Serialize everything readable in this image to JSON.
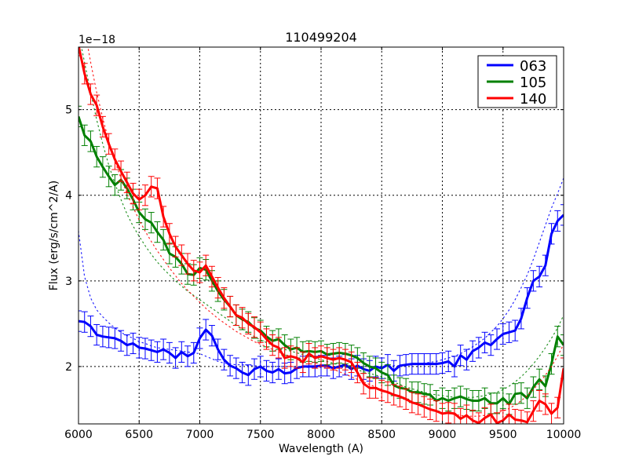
{
  "chart_data": {
    "type": "line",
    "title": "110499204",
    "xlabel": "Wavelength (A)",
    "ylabel": "Flux (erg/s/cm^2/A)",
    "y_offset_label": "1e−18",
    "xlim": [
      6000,
      10000
    ],
    "ylim": [
      1.33,
      5.73
    ],
    "x_ticks": [
      6000,
      6500,
      7000,
      7500,
      8000,
      8500,
      9000,
      9500,
      10000
    ],
    "y_ticks": [
      2,
      3,
      4,
      5
    ],
    "grid": true,
    "legend_position": "upper right",
    "series": [
      {
        "name": "063",
        "color": "#0000ff",
        "x": [
          6000,
          6050,
          6100,
          6150,
          6200,
          6250,
          6300,
          6350,
          6400,
          6450,
          6500,
          6550,
          6600,
          6650,
          6700,
          6750,
          6800,
          6850,
          6900,
          6950,
          7000,
          7050,
          7100,
          7150,
          7200,
          7250,
          7300,
          7350,
          7400,
          7450,
          7500,
          7550,
          7600,
          7650,
          7700,
          7750,
          7800,
          7850,
          7900,
          7950,
          8000,
          8050,
          8100,
          8150,
          8200,
          8250,
          8300,
          8350,
          8400,
          8450,
          8500,
          8550,
          8600,
          8650,
          8700,
          8750,
          8800,
          8850,
          8900,
          8950,
          9000,
          9050,
          9100,
          9150,
          9200,
          9250,
          9300,
          9350,
          9400,
          9450,
          9500,
          9550,
          9600,
          9650,
          9700,
          9750,
          9800,
          9850,
          9900,
          9950,
          10000
        ],
        "values": [
          2.53,
          2.52,
          2.47,
          2.37,
          2.35,
          2.34,
          2.33,
          2.3,
          2.25,
          2.27,
          2.22,
          2.21,
          2.19,
          2.17,
          2.2,
          2.16,
          2.1,
          2.17,
          2.12,
          2.16,
          2.33,
          2.43,
          2.36,
          2.2,
          2.08,
          2.01,
          1.98,
          1.93,
          1.9,
          1.97,
          2.0,
          1.95,
          1.93,
          1.97,
          1.92,
          1.93,
          1.98,
          2.0,
          2.0,
          2.0,
          2.01,
          2.01,
          1.98,
          2.0,
          2.02,
          1.97,
          2.01,
          1.97,
          1.95,
          2.0,
          1.98,
          2.02,
          1.95,
          2.01,
          2.02,
          2.03,
          2.03,
          2.03,
          2.03,
          2.03,
          2.04,
          2.06,
          2.0,
          2.13,
          2.08,
          2.18,
          2.22,
          2.28,
          2.25,
          2.32,
          2.38,
          2.4,
          2.42,
          2.56,
          2.8,
          3.0,
          3.05,
          3.18,
          3.55,
          3.7,
          3.77
        ],
        "errors": 0.12,
        "model": [
          3.58,
          3.05,
          2.8,
          2.66,
          2.58,
          2.51,
          2.45,
          2.4,
          2.36,
          2.33,
          2.29,
          2.27,
          2.24,
          2.22,
          2.21,
          2.2,
          2.19,
          2.18,
          2.17,
          2.16,
          2.15,
          2.12,
          2.09,
          2.06,
          2.04,
          2.03,
          2.02,
          2.02,
          2.01,
          2.01,
          2.0,
          2.0,
          2.0,
          2.0,
          2.0,
          2.0,
          1.99,
          1.99,
          1.99,
          1.99,
          1.99,
          1.99,
          1.99,
          1.99,
          1.99,
          1.99,
          1.99,
          2.0,
          2.0,
          2.0,
          2.0,
          2.0,
          2.01,
          2.01,
          2.02,
          2.02,
          2.03,
          2.04,
          2.05,
          2.06,
          2.08,
          2.1,
          2.12,
          2.15,
          2.19,
          2.23,
          2.28,
          2.33,
          2.4,
          2.47,
          2.56,
          2.66,
          2.78,
          2.92,
          3.07,
          3.25,
          3.45,
          3.65,
          3.85,
          4.02,
          4.2
        ]
      },
      {
        "name": "105",
        "color": "#008000",
        "x": [
          6000,
          6050,
          6100,
          6150,
          6200,
          6250,
          6300,
          6350,
          6400,
          6450,
          6500,
          6550,
          6600,
          6650,
          6700,
          6750,
          6800,
          6850,
          6900,
          6950,
          7000,
          7050,
          7100,
          7150,
          7200,
          7250,
          7300,
          7350,
          7400,
          7450,
          7500,
          7550,
          7600,
          7650,
          7700,
          7750,
          7800,
          7850,
          7900,
          7950,
          8000,
          8050,
          8100,
          8150,
          8200,
          8250,
          8300,
          8350,
          8400,
          8450,
          8500,
          8550,
          8600,
          8650,
          8700,
          8750,
          8800,
          8850,
          8900,
          8950,
          9000,
          9050,
          9100,
          9150,
          9200,
          9250,
          9300,
          9350,
          9400,
          9450,
          9500,
          9550,
          9600,
          9650,
          9700,
          9750,
          9800,
          9850,
          9900,
          9950,
          10000
        ],
        "values": [
          4.92,
          4.7,
          4.63,
          4.45,
          4.33,
          4.22,
          4.12,
          4.18,
          4.08,
          3.95,
          3.8,
          3.72,
          3.68,
          3.57,
          3.48,
          3.32,
          3.28,
          3.2,
          3.08,
          3.07,
          3.15,
          3.13,
          3.0,
          2.88,
          2.78,
          2.7,
          2.6,
          2.55,
          2.52,
          2.45,
          2.42,
          2.35,
          2.3,
          2.32,
          2.25,
          2.2,
          2.22,
          2.17,
          2.18,
          2.17,
          2.18,
          2.14,
          2.15,
          2.16,
          2.15,
          2.13,
          2.1,
          2.04,
          2.0,
          1.98,
          1.93,
          1.9,
          1.78,
          1.75,
          1.74,
          1.7,
          1.7,
          1.68,
          1.67,
          1.6,
          1.63,
          1.6,
          1.63,
          1.65,
          1.62,
          1.6,
          1.6,
          1.63,
          1.57,
          1.57,
          1.63,
          1.56,
          1.68,
          1.69,
          1.63,
          1.76,
          1.85,
          1.77,
          2.03,
          2.35,
          2.25
        ],
        "errors": 0.12,
        "model": [
          5.9,
          5.55,
          5.2,
          4.88,
          4.6,
          4.35,
          4.14,
          3.95,
          3.78,
          3.64,
          3.52,
          3.41,
          3.31,
          3.22,
          3.14,
          3.07,
          3.0,
          2.94,
          2.88,
          2.83,
          2.78,
          2.73,
          2.68,
          2.63,
          2.58,
          2.53,
          2.48,
          2.44,
          2.39,
          2.35,
          2.31,
          2.28,
          2.25,
          2.22,
          2.2,
          2.18,
          2.16,
          2.14,
          2.12,
          2.1,
          2.08,
          2.06,
          2.04,
          2.02,
          2.0,
          1.98,
          1.96,
          1.94,
          1.92,
          1.9,
          1.88,
          1.85,
          1.82,
          1.79,
          1.76,
          1.74,
          1.72,
          1.7,
          1.68,
          1.67,
          1.66,
          1.65,
          1.64,
          1.64,
          1.64,
          1.64,
          1.65,
          1.66,
          1.68,
          1.7,
          1.73,
          1.77,
          1.82,
          1.88,
          1.95,
          2.03,
          2.12,
          2.22,
          2.33,
          2.45,
          2.6
        ]
      },
      {
        "name": "140",
        "color": "#ff0000",
        "x": [
          6000,
          6050,
          6100,
          6150,
          6200,
          6250,
          6300,
          6350,
          6400,
          6450,
          6500,
          6550,
          6600,
          6650,
          6700,
          6750,
          6800,
          6850,
          6900,
          6950,
          7000,
          7050,
          7100,
          7150,
          7200,
          7250,
          7300,
          7350,
          7400,
          7450,
          7500,
          7550,
          7600,
          7650,
          7700,
          7750,
          7800,
          7850,
          7900,
          7950,
          8000,
          8050,
          8100,
          8150,
          8200,
          8250,
          8300,
          8350,
          8400,
          8450,
          8500,
          8550,
          8600,
          8650,
          8700,
          8750,
          8800,
          8850,
          8900,
          8950,
          9000,
          9050,
          9100,
          9150,
          9200,
          9250,
          9300,
          9350,
          9400,
          9450,
          9500,
          9550,
          9600,
          9650,
          9700,
          9750,
          9800,
          9850,
          9900,
          9950,
          10000
        ],
        "values": [
          5.75,
          5.42,
          5.18,
          5.05,
          4.8,
          4.6,
          4.42,
          4.28,
          4.15,
          4.02,
          3.95,
          4.0,
          4.1,
          4.08,
          3.75,
          3.55,
          3.4,
          3.3,
          3.2,
          3.12,
          3.1,
          3.18,
          3.05,
          2.92,
          2.8,
          2.7,
          2.6,
          2.57,
          2.5,
          2.46,
          2.4,
          2.32,
          2.25,
          2.22,
          2.1,
          2.12,
          2.1,
          2.05,
          2.15,
          2.1,
          2.12,
          2.1,
          2.08,
          2.1,
          2.08,
          2.05,
          1.93,
          1.8,
          1.75,
          1.75,
          1.72,
          1.7,
          1.67,
          1.65,
          1.62,
          1.58,
          1.56,
          1.53,
          1.5,
          1.48,
          1.45,
          1.46,
          1.45,
          1.39,
          1.43,
          1.37,
          1.34,
          1.4,
          1.44,
          1.34,
          1.37,
          1.44,
          1.38,
          1.37,
          1.35,
          1.48,
          1.6,
          1.56,
          1.45,
          1.52,
          1.98
        ],
        "errors": 0.12,
        "model": [
          6.4,
          5.95,
          5.55,
          5.2,
          4.9,
          4.63,
          4.4,
          4.2,
          4.02,
          3.86,
          3.71,
          3.58,
          3.46,
          3.35,
          3.25,
          3.15,
          3.06,
          2.97,
          2.89,
          2.82,
          2.75,
          2.68,
          2.62,
          2.56,
          2.51,
          2.46,
          2.41,
          2.37,
          2.33,
          2.29,
          2.26,
          2.23,
          2.2,
          2.17,
          2.14,
          2.12,
          2.1,
          2.08,
          2.06,
          2.04,
          2.02,
          2.0,
          1.97,
          1.94,
          1.91,
          1.88,
          1.85,
          1.82,
          1.79,
          1.76,
          1.73,
          1.7,
          1.67,
          1.64,
          1.61,
          1.58,
          1.55,
          1.52,
          1.5,
          1.48,
          1.46,
          1.45,
          1.44,
          1.43,
          1.42,
          1.42,
          1.42,
          1.43,
          1.44,
          1.46,
          1.48,
          1.51,
          1.55,
          1.6,
          1.66,
          1.73,
          1.81,
          1.9,
          2.0,
          2.12,
          2.26
        ]
      }
    ]
  }
}
